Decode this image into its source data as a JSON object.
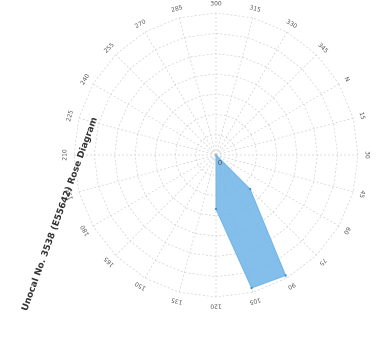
{
  "chart_data": {
    "type": "radar",
    "title": "Unocal No. 3538 (E55642) Rose Diagram",
    "subtitle": "",
    "axes": [
      "N",
      "15",
      "30",
      "45",
      "60",
      "75",
      "90",
      "105",
      "120",
      "135",
      "150",
      "165",
      "180",
      "195",
      "210",
      "225",
      "240",
      "255",
      "270",
      "285",
      "300",
      "315",
      "330",
      "345"
    ],
    "center_label": "0",
    "series": [
      {
        "values": [
          0,
          0,
          0,
          0,
          0,
          0.34,
          0.98,
          0.97,
          0.38,
          0,
          0,
          0,
          0,
          0,
          0,
          0,
          0,
          0,
          0,
          0,
          0,
          0,
          0,
          0
        ],
        "color": "#6fb4e8"
      }
    ],
    "rlim": [
      0,
      1
    ],
    "rings": 7,
    "grid": true,
    "rotation_deg": 60
  }
}
